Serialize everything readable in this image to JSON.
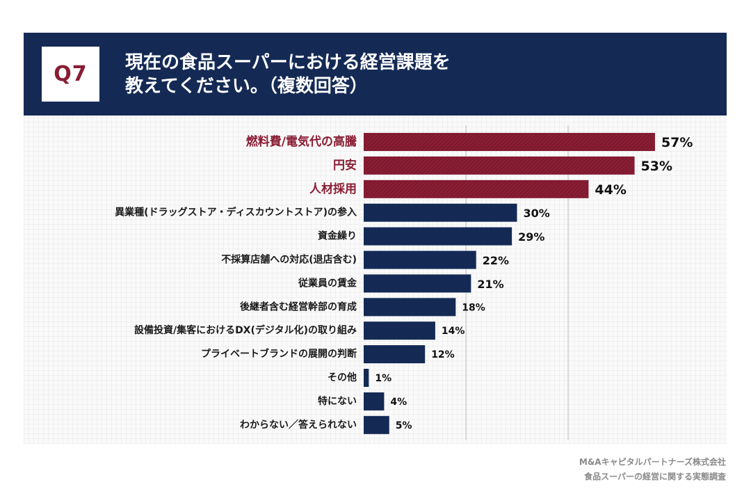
{
  "header": {
    "badge": "Q7",
    "title_line1": "現在の食品スーパーにおける経営課題を",
    "title_line2": "教えてください。（複数回答）"
  },
  "source": {
    "line1": "M&Aキャピタルパートナーズ株式会社",
    "line2": "食品スーパーの経営に関する実態調査"
  },
  "colors": {
    "navy": "#142a55",
    "crimson": "#8a1d34",
    "label_dark": "#1a1a1a"
  },
  "chart_data": {
    "type": "bar",
    "orientation": "horizontal",
    "title": "現在の食品スーパーにおける経営課題を教えてください。（複数回答）",
    "unit": "%",
    "xlim": [
      0,
      60
    ],
    "highlight_top": 3,
    "categories": [
      "燃料費/電気代の高騰",
      "円安",
      "人材採用",
      "異業種(ドラッグストア・ディスカウントストア)の参入",
      "資金繰り",
      "不採算店舗への対応(退店含む)",
      "従業員の賃金",
      "後継者含む経営幹部の育成",
      "設備投資/集客におけるDX(デジタル化)の取り組み",
      "プライベートブランドの展開の判断",
      "その他",
      "特にない",
      "わからない／答えられない"
    ],
    "values": [
      57,
      53,
      44,
      30,
      29,
      22,
      21,
      18,
      14,
      12,
      1,
      4,
      5
    ],
    "value_labels": [
      "57%",
      "53%",
      "44%",
      "30%",
      "29%",
      "22%",
      "21%",
      "18%",
      "14%",
      "12%",
      "1%",
      "4%",
      "5%"
    ]
  }
}
